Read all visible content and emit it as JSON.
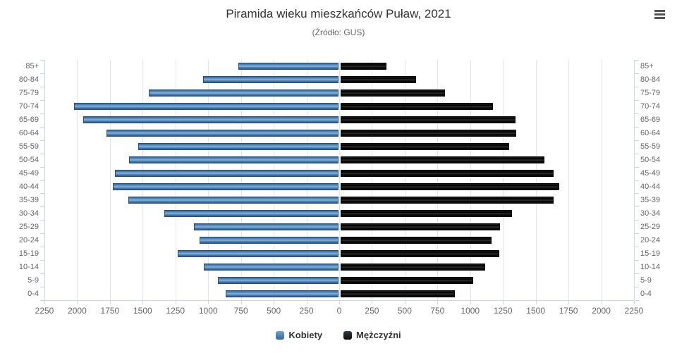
{
  "menu": {
    "tooltip": "Chart context menu"
  },
  "chart_data": {
    "type": "bar",
    "orientation": "population-pyramid",
    "title": "Piramida wieku mieszkańców Puław, 2021",
    "subtitle": "(Źródło: GUS)",
    "categories": [
      "85+",
      "80-84",
      "75-79",
      "70-74",
      "65-69",
      "60-64",
      "55-59",
      "50-54",
      "45-49",
      "40-44",
      "35-39",
      "30-34",
      "25-29",
      "20-24",
      "15-19",
      "10-14",
      "5-9",
      "0-4"
    ],
    "series": [
      {
        "name": "Kobiety",
        "side": "left",
        "color": "#3f7cba",
        "values": [
          765,
          1035,
          1450,
          2020,
          1950,
          1770,
          1530,
          1600,
          1705,
          1720,
          1605,
          1330,
          1105,
          1060,
          1225,
          1030,
          920,
          860
        ]
      },
      {
        "name": "Mężczyźni",
        "side": "right",
        "color": "#111111",
        "values": [
          350,
          575,
          795,
          1165,
          1335,
          1340,
          1285,
          1555,
          1625,
          1670,
          1625,
          1310,
          1215,
          1150,
          1210,
          1105,
          1010,
          870
        ]
      }
    ],
    "x_axis": {
      "max": 2250,
      "tick_interval": 250,
      "ticks": [
        0,
        250,
        500,
        750,
        1000,
        1250,
        1500,
        1750,
        2000,
        2250
      ],
      "mirrored": true
    },
    "grid": true,
    "legend_position": "bottom"
  }
}
